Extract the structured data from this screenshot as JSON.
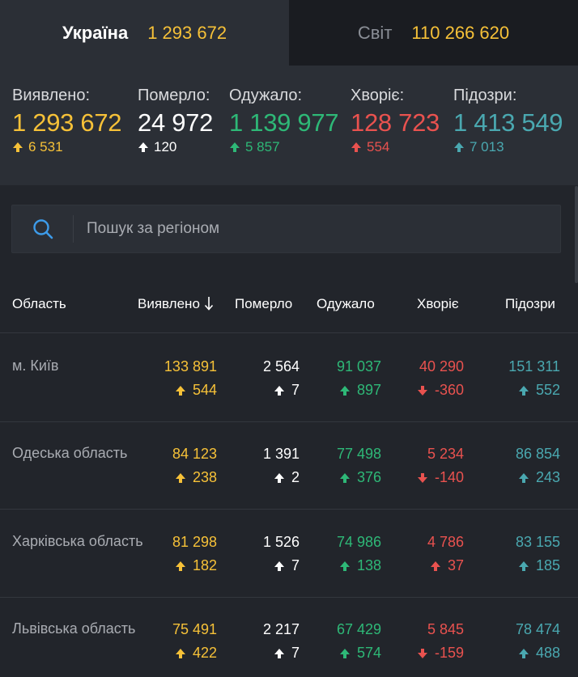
{
  "tabs": [
    {
      "label": "Україна",
      "value": "1 293 672",
      "active": true
    },
    {
      "label": "Світ",
      "value": "110 266 620",
      "active": false
    }
  ],
  "summary": {
    "detected": {
      "label": "Виявлено:",
      "value": "1 293 672",
      "delta": "6 531"
    },
    "died": {
      "label": "Померло:",
      "value": "24 972",
      "delta": "120"
    },
    "recovered": {
      "label": "Одужало:",
      "value": "1 139 977",
      "delta": "5 857"
    },
    "sick": {
      "label": "Хворіє:",
      "value": "128 723",
      "delta": "554"
    },
    "suspected": {
      "label": "Підозри:",
      "value": "1 413 549",
      "delta": "7 013"
    }
  },
  "search": {
    "placeholder": "Пошук за регіоном",
    "value": ""
  },
  "table": {
    "headers": {
      "region": "Область",
      "detected": "Виявлено",
      "died": "Померло",
      "recovered": "Одужало",
      "sick": "Хворіє",
      "suspected": "Підозри"
    },
    "rows": [
      {
        "region": "м. Київ",
        "detected": "133 891",
        "detected_d": "544",
        "died": "2 564",
        "died_d": "7",
        "recovered": "91 037",
        "recovered_d": "897",
        "sick": "40 290",
        "sick_d": "-360",
        "suspected": "151 311",
        "suspected_d": "552"
      },
      {
        "region": "Одеська область",
        "detected": "84 123",
        "detected_d": "238",
        "died": "1 391",
        "died_d": "2",
        "recovered": "77 498",
        "recovered_d": "376",
        "sick": "5 234",
        "sick_d": "-140",
        "suspected": "86 854",
        "suspected_d": "243"
      },
      {
        "region": "Харківська область",
        "detected": "81 298",
        "detected_d": "182",
        "died": "1 526",
        "died_d": "7",
        "recovered": "74 986",
        "recovered_d": "138",
        "sick": "4 786",
        "sick_d": "37",
        "suspected": "83 155",
        "suspected_d": "185"
      },
      {
        "region": "Львівська область",
        "detected": "75 491",
        "detected_d": "422",
        "died": "2 217",
        "died_d": "7",
        "recovered": "67 429",
        "recovered_d": "574",
        "sick": "5 845",
        "sick_d": "-159",
        "suspected": "78 474",
        "suspected_d": "488"
      }
    ]
  },
  "colors": {
    "yellow": "#f6c138",
    "white": "#ffffff",
    "green": "#2eb877",
    "red": "#e9524f",
    "teal": "#4aa8b0"
  }
}
